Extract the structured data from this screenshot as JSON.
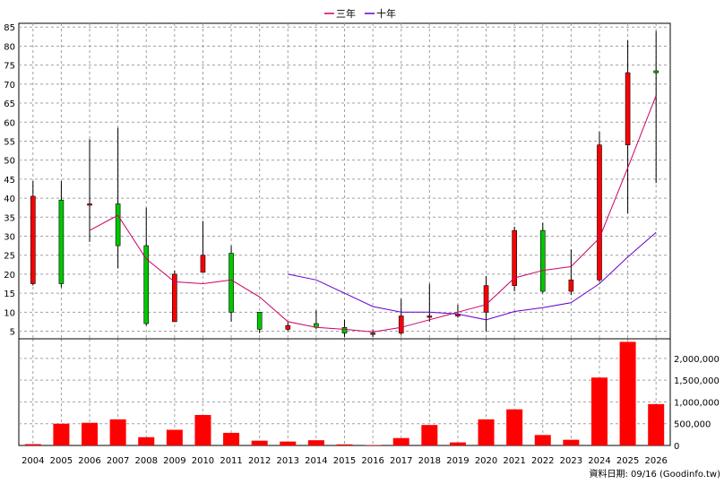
{
  "chart_data": [
    {
      "type": "candlestick",
      "legend": {
        "position": "top-center",
        "items": [
          "三年",
          "十年"
        ]
      },
      "colors": {
        "up": "#ff0000",
        "down": "#00c800",
        "ma3": "#cc0066",
        "ma10": "#6600cc"
      },
      "ylim": [
        3,
        86
      ],
      "yticks": [
        5,
        10,
        15,
        20,
        25,
        30,
        35,
        40,
        45,
        50,
        55,
        60,
        65,
        70,
        75,
        80,
        85
      ],
      "categories": [
        "2004",
        "2005",
        "2006",
        "2007",
        "2008",
        "2009",
        "2010",
        "2011",
        "2012",
        "2013",
        "2014",
        "2015",
        "2016",
        "2017",
        "2018",
        "2019",
        "2020",
        "2021",
        "2022",
        "2023",
        "2024",
        "2025",
        "2026"
      ],
      "ohlc": [
        {
          "open": 17.5,
          "high": 44.5,
          "low": 17,
          "close": 40.5
        },
        {
          "open": 39.5,
          "high": 44.5,
          "low": 16.5,
          "close": 17.5
        },
        {
          "open": 38.5,
          "high": 55.5,
          "low": 28.5,
          "close": 38.5
        },
        {
          "open": 38.5,
          "high": 58.5,
          "low": 21.5,
          "close": 27.5
        },
        {
          "open": 27.5,
          "high": 37.5,
          "low": 6.5,
          "close": 7
        },
        {
          "open": 7.5,
          "high": 21,
          "low": 7.5,
          "close": 20
        },
        {
          "open": 20.5,
          "high": 34,
          "low": 20.5,
          "close": 25
        },
        {
          "open": 25.5,
          "high": 27.5,
          "low": 7.5,
          "close": 10
        },
        {
          "open": 10,
          "high": 10,
          "low": 4.5,
          "close": 5.5
        },
        {
          "open": 5.5,
          "high": 7.5,
          "low": 5,
          "close": 6.5
        },
        {
          "open": 7,
          "high": 10.5,
          "low": 5.5,
          "close": 6
        },
        {
          "open": 6,
          "high": 8,
          "low": 3.5,
          "close": 4.5
        },
        {
          "open": 4.5,
          "high": 5.5,
          "low": 3.5,
          "close": 4.5
        },
        {
          "open": 4.5,
          "high": 13.5,
          "low": 4,
          "close": 9
        },
        {
          "open": 9,
          "high": 17.5,
          "low": 7.5,
          "close": 9
        },
        {
          "open": 9,
          "high": 12,
          "low": 8.5,
          "close": 9.5
        },
        {
          "open": 10,
          "high": 19.5,
          "low": 5,
          "close": 17
        },
        {
          "open": 17,
          "high": 32.5,
          "low": 15.5,
          "close": 31.5
        },
        {
          "open": 31.5,
          "high": 33.5,
          "low": 15,
          "close": 15.5
        },
        {
          "open": 15.5,
          "high": 26.5,
          "low": 14.5,
          "close": 18.5
        },
        {
          "open": 18.5,
          "high": 57.5,
          "low": 18,
          "close": 54
        },
        {
          "open": 54,
          "high": 81.5,
          "low": 36,
          "close": 73
        },
        {
          "open": 73.5,
          "high": 84,
          "low": 44,
          "close": 73
        }
      ],
      "ma3": [
        null,
        null,
        31.5,
        35.5,
        24,
        18,
        17.5,
        18.5,
        14,
        7.5,
        6,
        5.5,
        4.8,
        6,
        8,
        10,
        12,
        19,
        21,
        22,
        29.5,
        48,
        67
      ],
      "ma10": [
        null,
        null,
        null,
        null,
        null,
        null,
        null,
        null,
        null,
        20,
        18.5,
        15,
        11.5,
        10,
        10,
        9.5,
        8,
        10.2,
        11.2,
        12.5,
        17.5,
        24.5,
        31
      ],
      "volume": {
        "ylim": [
          0,
          2450000
        ],
        "yticks": [
          0,
          500000,
          1000000,
          1500000,
          2000000
        ],
        "ytick_labels": [
          "0",
          "500,000",
          "1,000,000",
          "1,500,000",
          "2,000,000"
        ],
        "values": [
          30000,
          500000,
          520000,
          600000,
          190000,
          360000,
          700000,
          290000,
          110000,
          90000,
          120000,
          25000,
          10000,
          170000,
          470000,
          70000,
          600000,
          830000,
          240000,
          130000,
          1560000,
          2380000,
          950000
        ]
      },
      "footer": "資料日期: 09/16  (Goodinfo.tw)"
    }
  ]
}
